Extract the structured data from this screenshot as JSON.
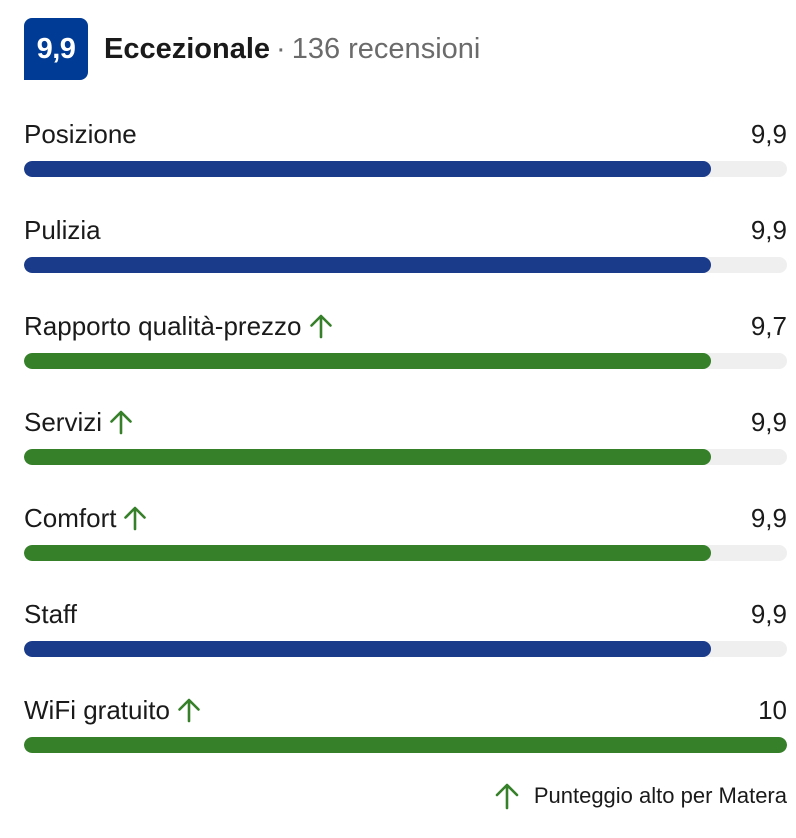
{
  "header": {
    "score": "9,9",
    "rating_word": "Eccezionale",
    "separator": "·",
    "review_count": "136 recensioni"
  },
  "categories": [
    {
      "label": "Posizione",
      "score": "9,9",
      "level": 0.9,
      "high": false
    },
    {
      "label": "Pulizia",
      "score": "9,9",
      "level": 0.9,
      "high": false
    },
    {
      "label": "Rapporto qualità-prezzo",
      "score": "9,7",
      "level": 0.9,
      "high": true
    },
    {
      "label": "Servizi",
      "score": "9,9",
      "level": 0.9,
      "high": true
    },
    {
      "label": "Comfort",
      "score": "9,9",
      "level": 0.9,
      "high": true
    },
    {
      "label": "Staff",
      "score": "9,9",
      "level": 0.9,
      "high": false
    },
    {
      "label": "WiFi gratuito",
      "score": "10",
      "level": 1.0,
      "high": true
    }
  ],
  "footer": {
    "note": "Punteggio alto per Matera",
    "icon": "arrow-up-icon"
  },
  "colors": {
    "badge": "#003b95",
    "bar_default": "#1a3a8a",
    "bar_high": "#36802a",
    "track": "#efefef",
    "up_arrow": "#36802a"
  }
}
